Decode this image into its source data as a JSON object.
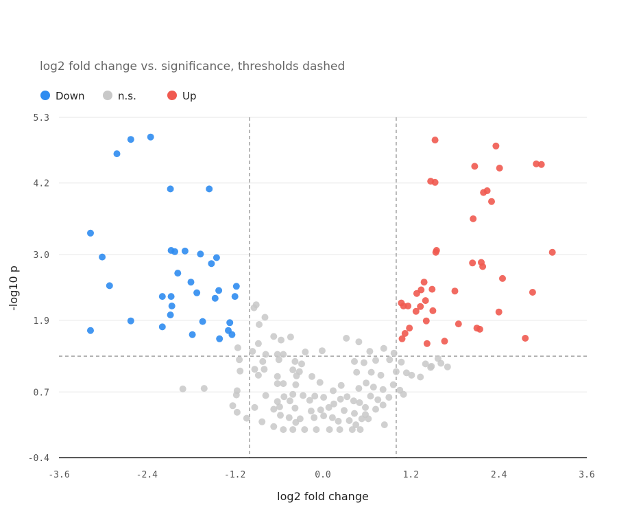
{
  "chart_data": {
    "type": "scatter",
    "title": "log2 fold change vs. significance, thresholds dashed",
    "xlabel": "log2 fold change",
    "ylabel": "-log10 p",
    "xlim": [
      -3.6,
      3.6
    ],
    "ylim": [
      -0.4,
      5.3
    ],
    "x_ticks": [
      "-3.6",
      "-2.4",
      "-1.2",
      "0.0",
      "1.2",
      "2.4",
      "3.6"
    ],
    "y_ticks": [
      "-0.4",
      "0.7",
      "1.9",
      "3.0",
      "4.2",
      "5.3"
    ],
    "grid": true,
    "legend_position": "top-left",
    "thresholds": {
      "x": [
        -1.0,
        1.0
      ],
      "y": 1.3
    },
    "series": [
      {
        "name": "Down",
        "color": "#2f8cf0",
        "points": [
          [
            -2.35,
            4.97
          ],
          [
            -2.62,
            4.93
          ],
          [
            -2.81,
            4.69
          ],
          [
            -2.08,
            4.1
          ],
          [
            -1.55,
            4.1
          ],
          [
            -3.17,
            3.36
          ],
          [
            -2.07,
            3.07
          ],
          [
            -2.02,
            3.05
          ],
          [
            -1.88,
            3.06
          ],
          [
            -1.67,
            3.01
          ],
          [
            -1.45,
            2.95
          ],
          [
            -1.52,
            2.85
          ],
          [
            -3.01,
            2.96
          ],
          [
            -1.98,
            2.69
          ],
          [
            -1.8,
            2.54
          ],
          [
            -2.91,
            2.48
          ],
          [
            -1.42,
            2.4
          ],
          [
            -1.18,
            2.47
          ],
          [
            -1.72,
            2.36
          ],
          [
            -2.19,
            2.3
          ],
          [
            -2.07,
            2.3
          ],
          [
            -1.47,
            2.27
          ],
          [
            -1.2,
            2.3
          ],
          [
            -2.06,
            2.14
          ],
          [
            -2.08,
            1.99
          ],
          [
            -2.62,
            1.89
          ],
          [
            -1.64,
            1.88
          ],
          [
            -1.27,
            1.86
          ],
          [
            -3.17,
            1.73
          ],
          [
            -2.19,
            1.79
          ],
          [
            -1.29,
            1.73
          ],
          [
            -1.24,
            1.66
          ],
          [
            -1.78,
            1.66
          ],
          [
            -1.41,
            1.59
          ]
        ]
      },
      {
        "name": "n.s.",
        "color": "#c8c8c8",
        "points": [
          [
            -0.91,
            2.16
          ],
          [
            -0.94,
            2.11
          ],
          [
            -0.79,
            1.95
          ],
          [
            -0.87,
            1.83
          ],
          [
            -0.67,
            1.63
          ],
          [
            -0.44,
            1.62
          ],
          [
            -0.57,
            1.57
          ],
          [
            0.32,
            1.6
          ],
          [
            0.49,
            1.54
          ],
          [
            -0.88,
            1.51
          ],
          [
            -1.16,
            1.44
          ],
          [
            -0.96,
            1.38
          ],
          [
            -0.78,
            1.33
          ],
          [
            -0.62,
            1.33
          ],
          [
            -0.54,
            1.33
          ],
          [
            -0.24,
            1.37
          ],
          [
            -0.01,
            1.39
          ],
          [
            0.64,
            1.38
          ],
          [
            0.83,
            1.43
          ],
          [
            0.97,
            1.35
          ],
          [
            -1.14,
            1.24
          ],
          [
            -0.6,
            1.24
          ],
          [
            -0.82,
            1.21
          ],
          [
            -0.38,
            1.21
          ],
          [
            -0.29,
            1.17
          ],
          [
            0.43,
            1.21
          ],
          [
            0.56,
            1.19
          ],
          [
            0.72,
            1.23
          ],
          [
            0.91,
            1.24
          ],
          [
            1.07,
            1.2
          ],
          [
            1.4,
            1.17
          ],
          [
            1.57,
            1.26
          ],
          [
            -1.13,
            1.05
          ],
          [
            -0.93,
            1.08
          ],
          [
            -0.8,
            1.08
          ],
          [
            -0.88,
            0.98
          ],
          [
            -0.62,
            0.96
          ],
          [
            -0.41,
            1.07
          ],
          [
            -0.32,
            1.04
          ],
          [
            -0.36,
            0.97
          ],
          [
            -0.15,
            0.96
          ],
          [
            0.46,
            1.03
          ],
          [
            0.66,
            1.03
          ],
          [
            0.79,
            0.98
          ],
          [
            1.0,
            1.04
          ],
          [
            1.14,
            1.02
          ],
          [
            1.21,
            0.98
          ],
          [
            1.33,
            0.95
          ],
          [
            1.48,
            1.13
          ],
          [
            1.61,
            1.18
          ],
          [
            1.7,
            1.12
          ],
          [
            1.47,
            1.11
          ],
          [
            -1.91,
            0.75
          ],
          [
            -1.62,
            0.76
          ],
          [
            -1.17,
            0.72
          ],
          [
            -0.54,
            0.84
          ],
          [
            -0.62,
            0.84
          ],
          [
            -0.37,
            0.82
          ],
          [
            -0.04,
            0.86
          ],
          [
            0.14,
            0.72
          ],
          [
            0.25,
            0.81
          ],
          [
            0.49,
            0.76
          ],
          [
            0.59,
            0.85
          ],
          [
            0.69,
            0.78
          ],
          [
            0.82,
            0.74
          ],
          [
            0.96,
            0.82
          ],
          [
            1.05,
            0.73
          ],
          [
            1.1,
            0.66
          ],
          [
            -1.18,
            0.65
          ],
          [
            -0.78,
            0.64
          ],
          [
            -0.53,
            0.62
          ],
          [
            -0.62,
            0.54
          ],
          [
            -0.45,
            0.55
          ],
          [
            -0.41,
            0.66
          ],
          [
            -0.27,
            0.64
          ],
          [
            -0.18,
            0.56
          ],
          [
            -0.11,
            0.63
          ],
          [
            0.01,
            0.61
          ],
          [
            0.15,
            0.5
          ],
          [
            0.24,
            0.58
          ],
          [
            0.33,
            0.62
          ],
          [
            0.42,
            0.55
          ],
          [
            0.5,
            0.52
          ],
          [
            0.58,
            0.44
          ],
          [
            0.65,
            0.63
          ],
          [
            0.75,
            0.57
          ],
          [
            0.82,
            0.48
          ],
          [
            0.9,
            0.61
          ],
          [
            -1.23,
            0.47
          ],
          [
            -0.93,
            0.44
          ],
          [
            -0.67,
            0.41
          ],
          [
            -0.59,
            0.45
          ],
          [
            -0.38,
            0.43
          ],
          [
            -0.16,
            0.38
          ],
          [
            -0.03,
            0.4
          ],
          [
            0.08,
            0.44
          ],
          [
            0.29,
            0.39
          ],
          [
            0.43,
            0.34
          ],
          [
            0.58,
            0.32
          ],
          [
            0.72,
            0.41
          ],
          [
            -1.17,
            0.36
          ],
          [
            -0.83,
            0.2
          ],
          [
            -0.58,
            0.31
          ],
          [
            -0.46,
            0.27
          ],
          [
            -0.31,
            0.25
          ],
          [
            -0.12,
            0.27
          ],
          [
            0.01,
            0.3
          ],
          [
            0.13,
            0.27
          ],
          [
            0.21,
            0.21
          ],
          [
            0.36,
            0.22
          ],
          [
            0.53,
            0.25
          ],
          [
            0.62,
            0.25
          ],
          [
            0.84,
            0.15
          ],
          [
            -1.04,
            0.26
          ],
          [
            -0.67,
            0.12
          ],
          [
            -0.54,
            0.07
          ],
          [
            -0.41,
            0.07
          ],
          [
            -0.25,
            0.07
          ],
          [
            -0.09,
            0.07
          ],
          [
            0.09,
            0.07
          ],
          [
            0.23,
            0.07
          ],
          [
            0.4,
            0.07
          ],
          [
            0.51,
            0.07
          ],
          [
            -0.37,
            0.19
          ],
          [
            0.45,
            0.15
          ]
        ]
      },
      {
        "name": "Up",
        "color": "#f05a50",
        "points": [
          [
            1.53,
            4.92
          ],
          [
            2.36,
            4.82
          ],
          [
            2.91,
            4.52
          ],
          [
            2.98,
            4.51
          ],
          [
            2.07,
            4.48
          ],
          [
            2.41,
            4.45
          ],
          [
            1.47,
            4.23
          ],
          [
            1.53,
            4.21
          ],
          [
            2.24,
            4.07
          ],
          [
            2.19,
            4.04
          ],
          [
            2.3,
            3.89
          ],
          [
            2.05,
            3.6
          ],
          [
            1.55,
            3.07
          ],
          [
            1.54,
            3.04
          ],
          [
            3.13,
            3.04
          ],
          [
            2.16,
            2.87
          ],
          [
            2.04,
            2.86
          ],
          [
            2.18,
            2.8
          ],
          [
            2.45,
            2.6
          ],
          [
            1.38,
            2.54
          ],
          [
            1.49,
            2.42
          ],
          [
            1.34,
            2.41
          ],
          [
            1.8,
            2.39
          ],
          [
            2.86,
            2.37
          ],
          [
            1.28,
            2.35
          ],
          [
            1.4,
            2.23
          ],
          [
            1.07,
            2.19
          ],
          [
            1.1,
            2.14
          ],
          [
            1.16,
            2.14
          ],
          [
            1.33,
            2.13
          ],
          [
            1.5,
            2.06
          ],
          [
            1.27,
            2.05
          ],
          [
            2.4,
            2.04
          ],
          [
            1.41,
            1.89
          ],
          [
            1.85,
            1.84
          ],
          [
            2.1,
            1.77
          ],
          [
            2.14,
            1.75
          ],
          [
            1.18,
            1.77
          ],
          [
            1.12,
            1.68
          ],
          [
            2.76,
            1.6
          ],
          [
            1.08,
            1.59
          ],
          [
            1.66,
            1.55
          ],
          [
            1.42,
            1.51
          ]
        ]
      }
    ]
  }
}
